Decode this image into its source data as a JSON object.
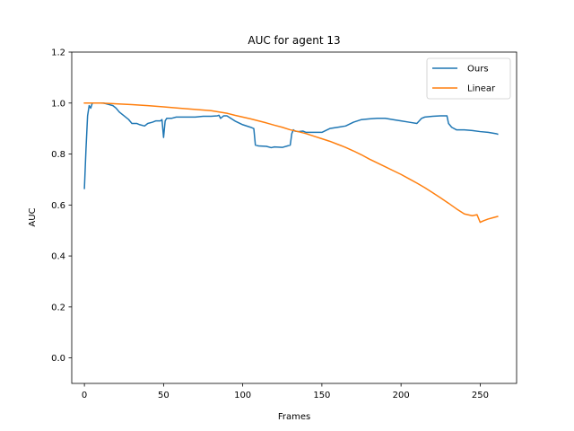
{
  "chart_data": {
    "type": "line",
    "title": "AUC for agent 13",
    "xlabel": "Frames",
    "ylabel": "AUC",
    "xlim": [
      -8,
      273
    ],
    "ylim": [
      -0.1,
      1.2
    ],
    "xticks": [
      0,
      50,
      100,
      150,
      200,
      250
    ],
    "yticks": [
      0.0,
      0.2,
      0.4,
      0.6,
      0.8,
      1.0,
      1.2
    ],
    "xtick_labels": [
      "0",
      "50",
      "100",
      "150",
      "200",
      "250"
    ],
    "ytick_labels": [
      "0.0",
      "0.2",
      "0.4",
      "0.6",
      "0.8",
      "1.0",
      "1.2"
    ],
    "grid": false,
    "legend_position": "top-right",
    "series": [
      {
        "name": "Ours",
        "color": "#1f77b4",
        "x": [
          0,
          1,
          2,
          3,
          4,
          5,
          6,
          8,
          10,
          12,
          15,
          18,
          20,
          22,
          25,
          28,
          30,
          33,
          35,
          38,
          40,
          43,
          45,
          48,
          49,
          50,
          51,
          52,
          55,
          58,
          60,
          65,
          70,
          75,
          80,
          84,
          85,
          86,
          88,
          90,
          95,
          100,
          105,
          107,
          108,
          110,
          115,
          118,
          120,
          125,
          130,
          131,
          132,
          133,
          135,
          138,
          140,
          145,
          150,
          155,
          160,
          165,
          170,
          175,
          180,
          185,
          190,
          195,
          200,
          205,
          210,
          213,
          215,
          220,
          225,
          229,
          230,
          232,
          235,
          240,
          245,
          250,
          255,
          260,
          261
        ],
        "y": [
          0.665,
          0.82,
          0.95,
          0.99,
          0.98,
          1.0,
          1.0,
          1.0,
          1.0,
          1.0,
          0.995,
          0.99,
          0.98,
          0.965,
          0.95,
          0.935,
          0.92,
          0.92,
          0.915,
          0.91,
          0.92,
          0.925,
          0.93,
          0.93,
          0.935,
          0.865,
          0.93,
          0.94,
          0.94,
          0.945,
          0.945,
          0.945,
          0.945,
          0.948,
          0.948,
          0.95,
          0.952,
          0.94,
          0.95,
          0.95,
          0.93,
          0.915,
          0.905,
          0.9,
          0.835,
          0.832,
          0.83,
          0.825,
          0.828,
          0.826,
          0.835,
          0.88,
          0.895,
          0.89,
          0.888,
          0.89,
          0.885,
          0.885,
          0.885,
          0.9,
          0.905,
          0.91,
          0.925,
          0.935,
          0.938,
          0.94,
          0.94,
          0.935,
          0.93,
          0.925,
          0.92,
          0.94,
          0.945,
          0.948,
          0.95,
          0.95,
          0.92,
          0.905,
          0.895,
          0.895,
          0.892,
          0.888,
          0.885,
          0.88,
          0.878
        ]
      },
      {
        "name": "Linear",
        "color": "#ff7f0e",
        "x": [
          0,
          10,
          20,
          30,
          40,
          50,
          60,
          70,
          80,
          90,
          95,
          100,
          105,
          110,
          115,
          120,
          125,
          130,
          135,
          140,
          145,
          150,
          155,
          160,
          165,
          170,
          175,
          180,
          185,
          190,
          195,
          200,
          205,
          210,
          215,
          220,
          225,
          230,
          235,
          240,
          245,
          248,
          250,
          252,
          255,
          258,
          261
        ],
        "y": [
          1.0,
          1.0,
          0.997,
          0.994,
          0.99,
          0.985,
          0.98,
          0.975,
          0.97,
          0.96,
          0.952,
          0.945,
          0.938,
          0.93,
          0.922,
          0.913,
          0.905,
          0.895,
          0.888,
          0.88,
          0.87,
          0.86,
          0.85,
          0.838,
          0.826,
          0.812,
          0.797,
          0.78,
          0.765,
          0.75,
          0.735,
          0.72,
          0.703,
          0.686,
          0.668,
          0.648,
          0.628,
          0.607,
          0.585,
          0.565,
          0.558,
          0.562,
          0.532,
          0.538,
          0.545,
          0.55,
          0.555
        ]
      }
    ]
  }
}
